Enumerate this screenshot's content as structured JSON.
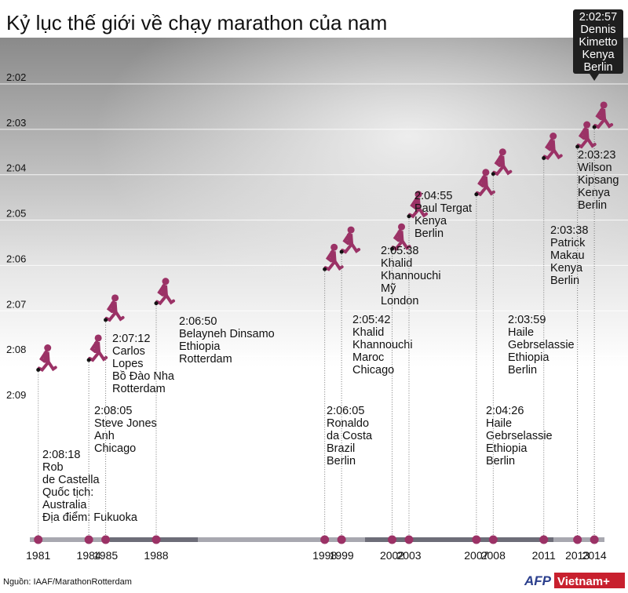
{
  "chart_data": {
    "type": "timeline-dots",
    "title": "Kỷ lục thế giới về chạy marathon của nam",
    "source": "Nguồn: IAAF/MarathonRotterdam",
    "logos": [
      "AFP",
      "Vietnam+"
    ],
    "x": [
      1981,
      1984,
      1985,
      1988,
      1998,
      1999,
      2002,
      2003,
      2007,
      2008,
      2011,
      2013,
      2014
    ],
    "xlim": [
      1980.5,
      2014.6
    ],
    "values": [
      7698,
      7685,
      7632,
      7610,
      7565,
      7542,
      7538,
      7495,
      7466,
      7439,
      7418,
      7403,
      7377
    ],
    "value_labels": [
      "2:08:18",
      "2:08:05",
      "2:07:12",
      "2:06:50",
      "2:06:05",
      "2:05:42",
      "2:05:38",
      "2:04:55",
      "2:04:26",
      "2:03:59",
      "2:03:38",
      "2:03:23",
      "2:02:57"
    ],
    "annotations": [
      [
        "Rob",
        "de Castella",
        "Quốc tịch:",
        "Australia",
        "Địa điểm: Fukuoka"
      ],
      [
        "Steve Jones",
        "Anh",
        "Chicago"
      ],
      [
        "Carlos",
        "Lopes",
        "Bồ Đào Nha",
        "Rotterdam"
      ],
      [
        "Belayneh Dinsamo",
        "Ethiopia",
        "Rotterdam"
      ],
      [
        "Ronaldo",
        "da Costa",
        "Brazil",
        "Berlin"
      ],
      [
        "Khalid",
        "Khannouchi",
        "Maroc",
        "Chicago"
      ],
      [
        "Khalid",
        "Khannouchi",
        "Mỹ",
        "London"
      ],
      [
        "Paul Tergat",
        "Kenya",
        "Berlin"
      ],
      [
        "Haile",
        "Gebrselassie",
        "Ethiopia",
        "Berlin"
      ],
      [
        "Haile",
        "Gebrselassie",
        "Ethiopia",
        "Berlin"
      ],
      [
        "Patrick",
        "Makau",
        "Kenya",
        "Berlin"
      ],
      [
        "Wilson",
        "Kipsang",
        "Kenya",
        "Berlin"
      ],
      [
        "Dennis",
        "Kimetto",
        "Kenya",
        "Berlin"
      ]
    ],
    "color": "#9b3266",
    "ylim": [
      7740,
      7320
    ],
    "yticks": [
      {
        "value": 7320,
        "label": "2:02"
      },
      {
        "value": 7380,
        "label": "2:03"
      },
      {
        "value": 7440,
        "label": "2:04"
      },
      {
        "value": 7500,
        "label": "2:05"
      },
      {
        "value": 7560,
        "label": "2:06"
      },
      {
        "value": 7620,
        "label": "2:07"
      },
      {
        "value": 7680,
        "label": "2:08"
      },
      {
        "value": 7740,
        "label": "2:09"
      }
    ],
    "grid": true
  }
}
